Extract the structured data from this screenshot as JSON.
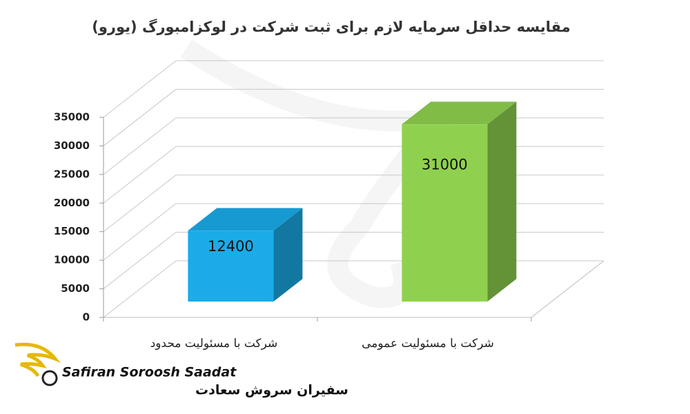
{
  "chart_data": {
    "type": "bar3d",
    "title": "مقایسه حداقل سرمایه لازم برای ثبت شرکت در لوکزامبورگ (یورو)",
    "categories": [
      "شرکت با مسئولیت محدود",
      "شرکت با مسئولیت عمومی"
    ],
    "values": [
      12400,
      31000
    ],
    "colors": [
      "#1aabe8",
      "#8fd14f"
    ],
    "ylim": [
      0,
      35000
    ],
    "yticks": [
      0,
      5000,
      10000,
      15000,
      20000,
      25000,
      30000,
      35000
    ],
    "grid": true
  },
  "logo": {
    "name_en": "Safiran Soroosh Saadat",
    "name_fa": "سفیران سروش سعادت"
  }
}
